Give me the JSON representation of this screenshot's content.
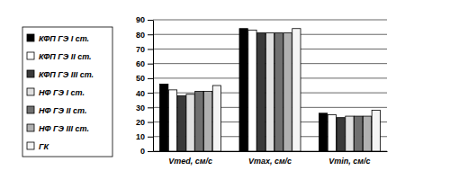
{
  "chart_data": {
    "type": "bar",
    "categories": [
      "Vmed, см/с",
      "Vmax, см/с",
      "Vmin, см/с"
    ],
    "series": [
      {
        "name": "КФП ГЭ I ст.",
        "color": "#000000",
        "values": [
          46,
          84,
          26
        ]
      },
      {
        "name": "КФП ГЭ II ст.",
        "color": "#ffffff",
        "values": [
          42,
          83,
          25
        ]
      },
      {
        "name": "КФП ГЭ III ст.",
        "color": "#3a3a3a",
        "values": [
          38,
          81,
          23
        ]
      },
      {
        "name": "НФ ГЭ I ст.",
        "color": "#e0e0e0",
        "values": [
          39,
          81,
          24
        ]
      },
      {
        "name": "НФ ГЭ II ст.",
        "color": "#707070",
        "values": [
          41,
          81,
          24
        ]
      },
      {
        "name": "НФ ГЭ III ст.",
        "color": "#b0b0b0",
        "values": [
          41,
          81,
          24
        ]
      },
      {
        "name": "ГК",
        "color": "#f4f4f4",
        "values": [
          45,
          84,
          28
        ]
      }
    ],
    "ylim": [
      0,
      90
    ],
    "yticks": [
      0,
      10,
      20,
      30,
      40,
      50,
      60,
      70,
      80,
      90
    ],
    "grid": true,
    "legend": "left"
  }
}
